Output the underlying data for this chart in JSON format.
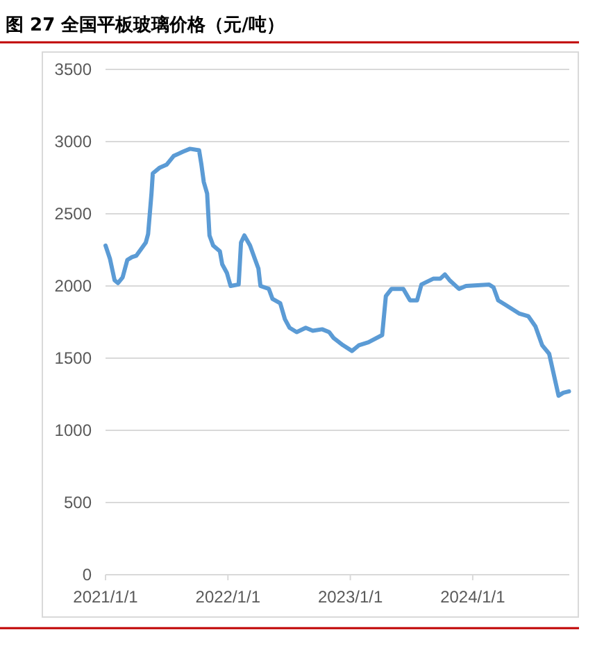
{
  "chart_data": {
    "type": "line",
    "title": "图 27 全国平板玻璃价格（元/吨）",
    "series": [
      {
        "color": "#5b9bd5",
        "x": [
          "2021-01-01",
          "2021-01-14",
          "2021-01-28",
          "2021-02-07",
          "2021-02-21",
          "2021-03-07",
          "2021-03-21",
          "2021-04-03",
          "2021-05-01",
          "2021-05-08",
          "2021-05-18",
          "2021-05-22",
          "2021-06-12",
          "2021-07-02",
          "2021-07-23",
          "2021-08-20",
          "2021-09-10",
          "2021-10-07",
          "2021-10-14",
          "2021-10-21",
          "2021-10-31",
          "2021-11-07",
          "2021-11-18",
          "2021-12-08",
          "2021-12-15",
          "2021-12-29",
          "2022-01-09",
          "2022-02-02",
          "2022-02-09",
          "2022-02-19",
          "2022-03-08",
          "2022-03-22",
          "2022-04-02",
          "2022-04-08",
          "2022-05-03",
          "2022-05-14",
          "2022-06-06",
          "2022-06-20",
          "2022-07-04",
          "2022-07-25",
          "2022-08-21",
          "2022-09-11",
          "2022-10-09",
          "2022-10-30",
          "2022-11-12",
          "2022-12-10",
          "2023-01-06",
          "2023-01-27",
          "2023-02-24",
          "2023-04-06",
          "2023-04-17",
          "2023-05-04",
          "2023-06-08",
          "2023-06-28",
          "2023-07-19",
          "2023-08-01",
          "2023-09-05",
          "2023-09-26",
          "2023-10-10",
          "2023-10-24",
          "2023-11-21",
          "2023-12-12",
          "2024-02-19",
          "2024-03-03",
          "2024-03-17",
          "2024-04-07",
          "2024-05-18",
          "2024-06-15",
          "2024-07-06",
          "2024-07-26",
          "2024-08-16",
          "2024-09-13",
          "2024-09-27",
          "2024-10-14"
        ],
        "values": [
          2280,
          2190,
          2040,
          2020,
          2060,
          2180,
          2200,
          2210,
          2300,
          2360,
          2640,
          2780,
          2820,
          2840,
          2900,
          2930,
          2950,
          2940,
          2840,
          2720,
          2640,
          2350,
          2280,
          2240,
          2150,
          2090,
          2000,
          2010,
          2300,
          2350,
          2280,
          2190,
          2120,
          2000,
          1980,
          1910,
          1880,
          1770,
          1710,
          1680,
          1710,
          1690,
          1700,
          1680,
          1640,
          1590,
          1550,
          1590,
          1610,
          1660,
          1930,
          1980,
          1980,
          1900,
          1900,
          2010,
          2050,
          2050,
          2080,
          2040,
          1980,
          2000,
          2010,
          1990,
          1900,
          1870,
          1810,
          1790,
          1720,
          1590,
          1530,
          1240,
          1260,
          1270
        ]
      }
    ],
    "xlim": [
      "2021-01-01",
      "2024-10-15"
    ],
    "xticks": [
      {
        "value": "2021-01-01",
        "label": "2021/1/1"
      },
      {
        "value": "2022-01-01",
        "label": "2022/1/1"
      },
      {
        "value": "2023-01-01",
        "label": "2023/1/1"
      },
      {
        "value": "2024-01-01",
        "label": "2024/1/1"
      }
    ],
    "ylim": [
      0,
      3500
    ],
    "yticks": [
      0,
      500,
      1000,
      1500,
      2000,
      2500,
      3000,
      3500
    ],
    "grid": "y",
    "marker": "none",
    "line_style": "solid"
  }
}
